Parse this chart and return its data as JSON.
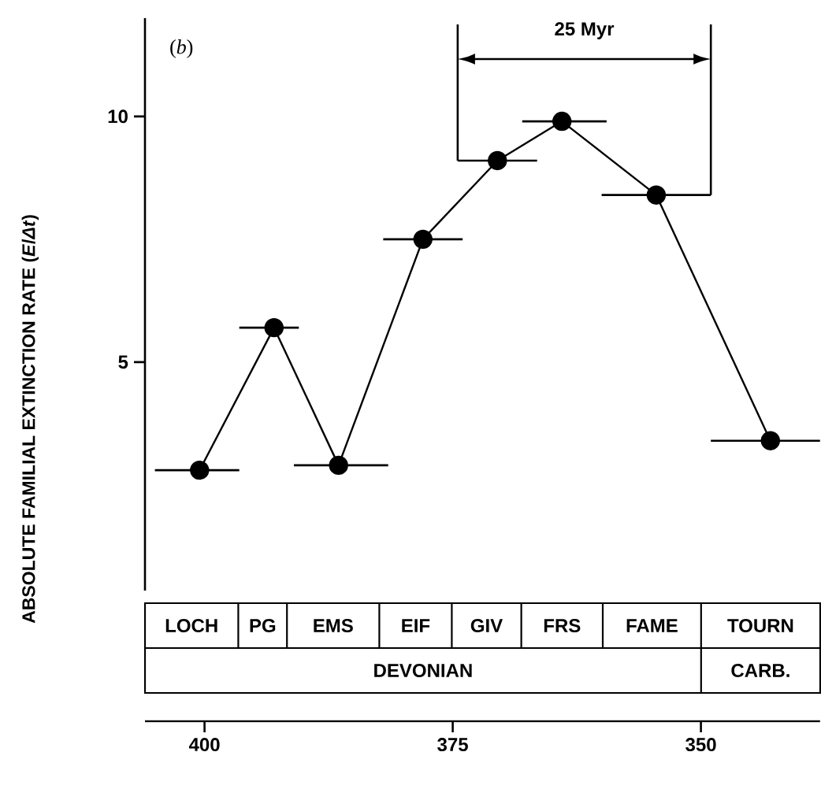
{
  "chart_data": {
    "type": "line",
    "ylabel": "ABSOLUTE FAMILIAL EXTINCTION RATE (*E*/*Δt*)",
    "annotations": [
      "(*b*)",
      "25 Myr",
      "LOCH",
      "PG",
      "EMS",
      "EIF",
      "GIV",
      "FRS",
      "FAME",
      "TOURN",
      "DEVONIAN",
      "CARB."
    ],
    "x": [
      400.5,
      393,
      386.5,
      378,
      370.5,
      364,
      354.5,
      343
    ],
    "series": [
      {
        "color": "#000000",
        "values": [
          2.8,
          5.7,
          2.9,
          7.5,
          9.1,
          9.9,
          8.4,
          3.4
        ],
        "xerrors": [
          [
            396.5,
            405
          ],
          [
            390.5,
            396.5
          ],
          [
            381.5,
            391
          ],
          [
            374,
            382
          ],
          [
            366.5,
            374.5
          ],
          [
            359.5,
            368
          ],
          [
            349,
            360
          ],
          [
            338,
            349
          ]
        ]
      }
    ],
    "xlim": [
      406,
      338
    ],
    "ylim": [
      0.35,
      12
    ],
    "xticks": [
      400,
      375,
      350
    ],
    "yticks": [
      5,
      10
    ],
    "marker": "circle",
    "line_style": "solid",
    "ref_lines": [
      {
        "axis": "x",
        "value": 374.5
      },
      {
        "axis": "x",
        "value": 349
      }
    ]
  }
}
